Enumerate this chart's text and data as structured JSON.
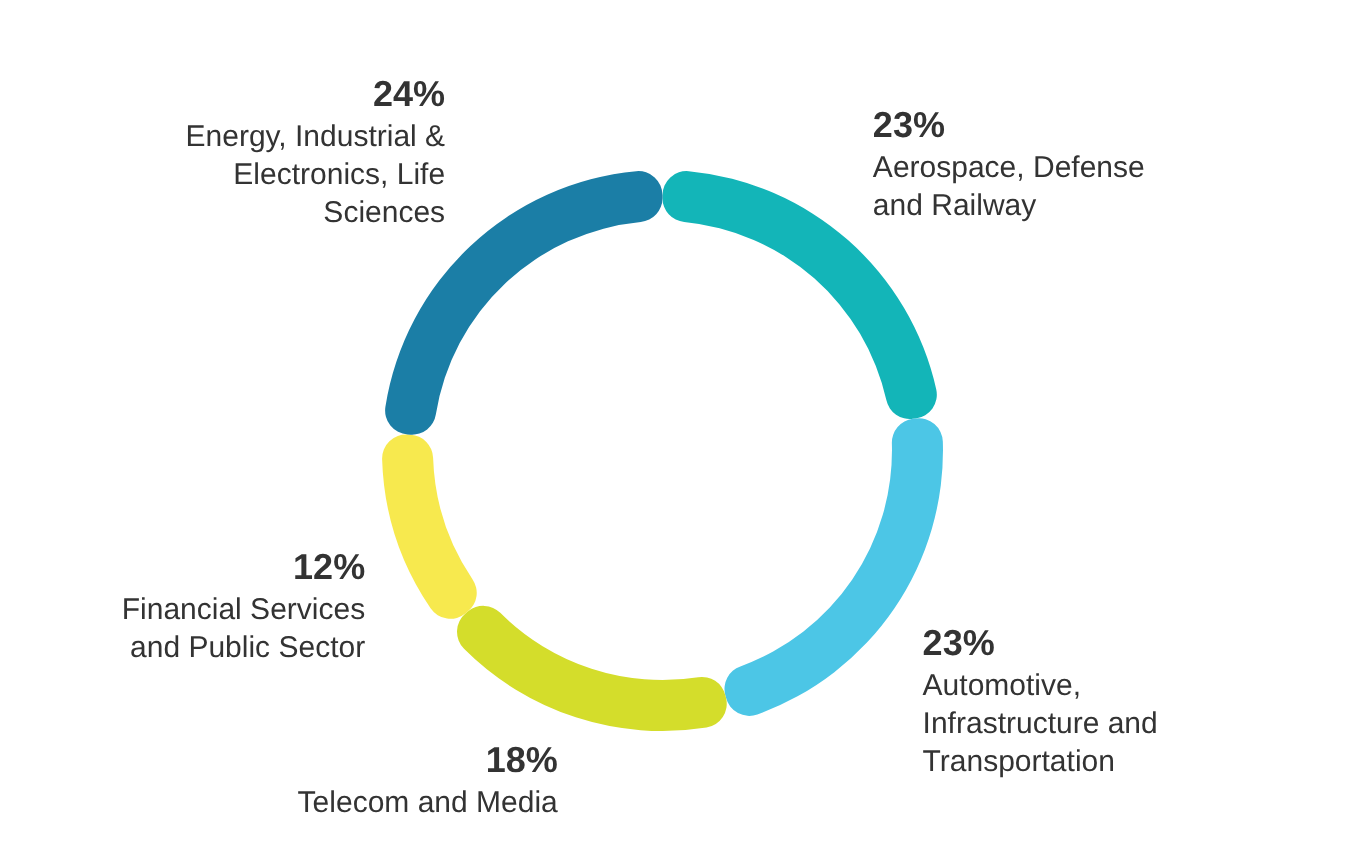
{
  "chart_data": {
    "type": "donut",
    "categories": [
      "Aerospace, Defense and Railway",
      "Automotive, Infrastructure and Transportation",
      "Telecom and Media",
      "Financial Services and Public Sector",
      "Energy, Industrial & Electronics, Life Sciences"
    ],
    "values": [
      23,
      23,
      18,
      12,
      24
    ],
    "value_labels": [
      "23%",
      "23%",
      "18%",
      "12%",
      "24%"
    ],
    "colors": [
      "#13b5b8",
      "#4cc6e6",
      "#d4dd2b",
      "#f7e94e",
      "#1b7ea6"
    ],
    "legend": false
  }
}
